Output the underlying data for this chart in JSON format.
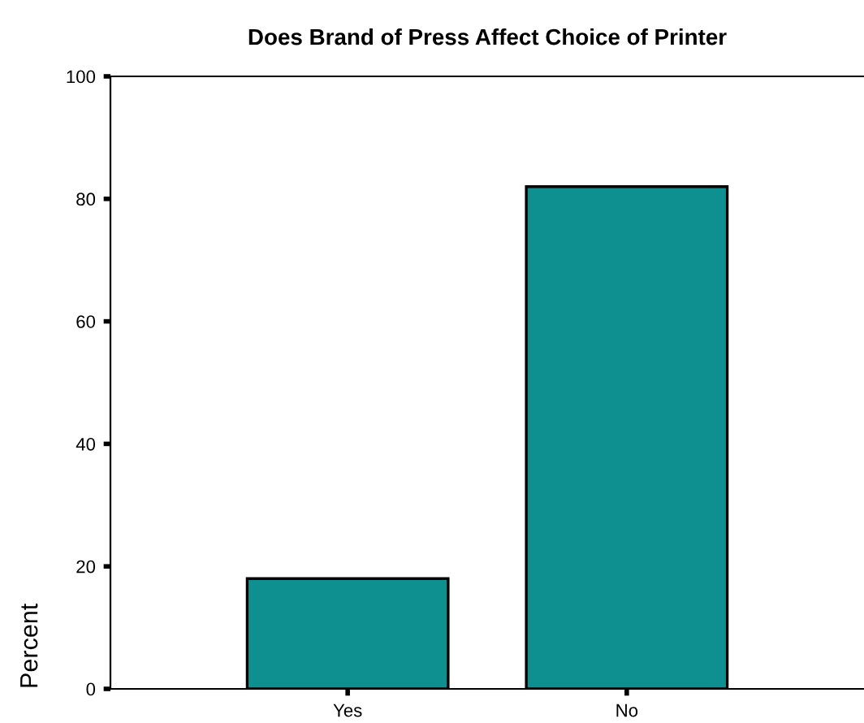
{
  "chart_data": {
    "type": "bar",
    "title": "Does Brand of Press Affect Choice of Printer",
    "ylabel": "Percent",
    "categories": [
      "Yes",
      "No"
    ],
    "values": [
      18,
      82
    ],
    "color": "#0e9090",
    "ylim": [
      0,
      100
    ],
    "yticks": [
      0,
      20,
      40,
      60,
      80,
      100
    ],
    "grid": false
  }
}
